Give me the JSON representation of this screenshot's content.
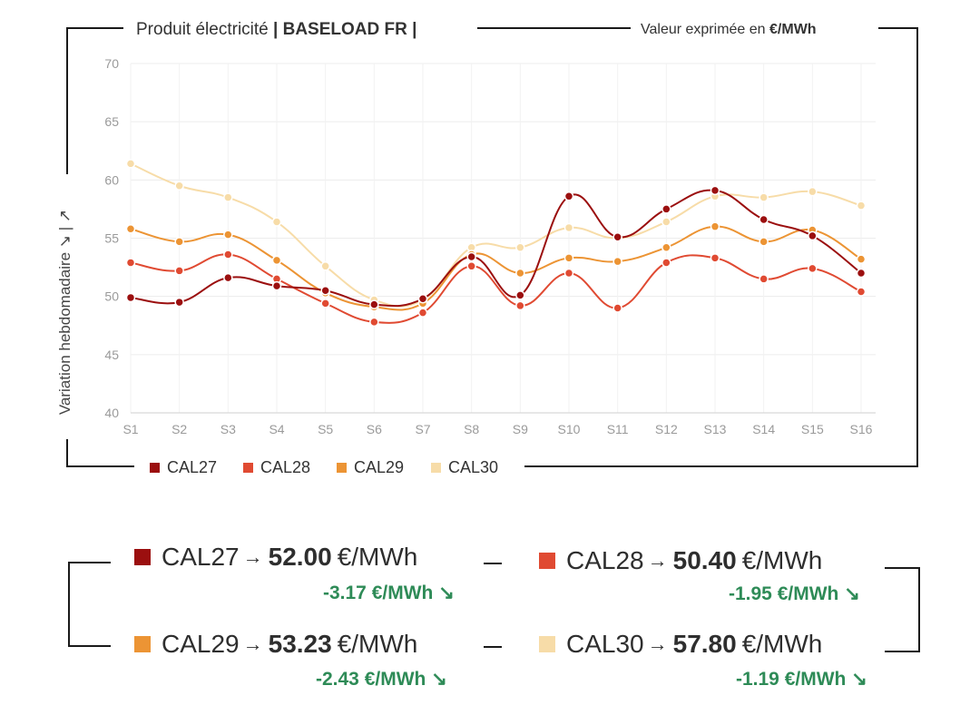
{
  "header": {
    "product_prefix": "Produit électricité",
    "product_name": "| BASELOAD FR |",
    "unit_prefix": "Valeur exprimée en",
    "unit_name": "€/MWh"
  },
  "y_axis_title": "Variation hebdomadaire ↘ | ↗",
  "chart_data": {
    "type": "line",
    "categories": [
      "S1",
      "S2",
      "S3",
      "S4",
      "S5",
      "S6",
      "S7",
      "S8",
      "S9",
      "S10",
      "S11",
      "S12",
      "S13",
      "S14",
      "S15",
      "S16"
    ],
    "ylim": [
      40,
      70
    ],
    "yticks": [
      40,
      45,
      50,
      55,
      60,
      65,
      70
    ],
    "grid": true,
    "xlabel": "",
    "ylabel": "Variation hebdomadaire",
    "series": [
      {
        "name": "CAL27",
        "color": "#9b0f0f",
        "values": [
          49.9,
          49.5,
          51.6,
          50.9,
          50.5,
          49.3,
          49.8,
          53.4,
          50.1,
          58.6,
          55.1,
          57.5,
          59.1,
          56.6,
          55.2,
          52.0
        ]
      },
      {
        "name": "CAL28",
        "color": "#e04a32",
        "values": [
          52.9,
          52.2,
          53.6,
          51.5,
          49.4,
          47.8,
          48.6,
          52.6,
          49.2,
          52.0,
          49.0,
          52.9,
          53.3,
          51.5,
          52.4,
          50.4
        ]
      },
      {
        "name": "CAL29",
        "color": "#ec9434",
        "values": [
          55.8,
          54.7,
          55.3,
          53.1,
          50.3,
          49.1,
          49.4,
          53.6,
          52.0,
          53.3,
          53.0,
          54.2,
          56.0,
          54.7,
          55.7,
          53.2
        ]
      },
      {
        "name": "CAL30",
        "color": "#f7dca8",
        "values": [
          61.4,
          59.5,
          58.5,
          56.4,
          52.6,
          49.7,
          49.7,
          54.2,
          54.2,
          55.9,
          55.0,
          56.4,
          58.6,
          58.5,
          59.0,
          57.8
        ]
      }
    ]
  },
  "legend": [
    {
      "label": "CAL27",
      "color": "#9b0f0f"
    },
    {
      "label": "CAL28",
      "color": "#e04a32"
    },
    {
      "label": "CAL29",
      "color": "#ec9434"
    },
    {
      "label": "CAL30",
      "color": "#f7dca8"
    }
  ],
  "summary": [
    {
      "name": "CAL27",
      "arrow": "→",
      "value": "52.00",
      "unit": "€/MWh",
      "delta": "-3.17 €/MWh ↘",
      "color": "#9b0f0f"
    },
    {
      "name": "CAL28",
      "arrow": "→",
      "value": "50.40",
      "unit": "€/MWh",
      "delta": "-1.95 €/MWh ↘",
      "color": "#e04a32"
    },
    {
      "name": "CAL29",
      "arrow": "→",
      "value": "53.23",
      "unit": "€/MWh",
      "delta": "-2.43 €/MWh ↘",
      "color": "#ec9434"
    },
    {
      "name": "CAL30",
      "arrow": "→",
      "value": "57.80",
      "unit": "€/MWh",
      "delta": "-1.19 €/MWh ↘",
      "color": "#f7dca8"
    }
  ]
}
